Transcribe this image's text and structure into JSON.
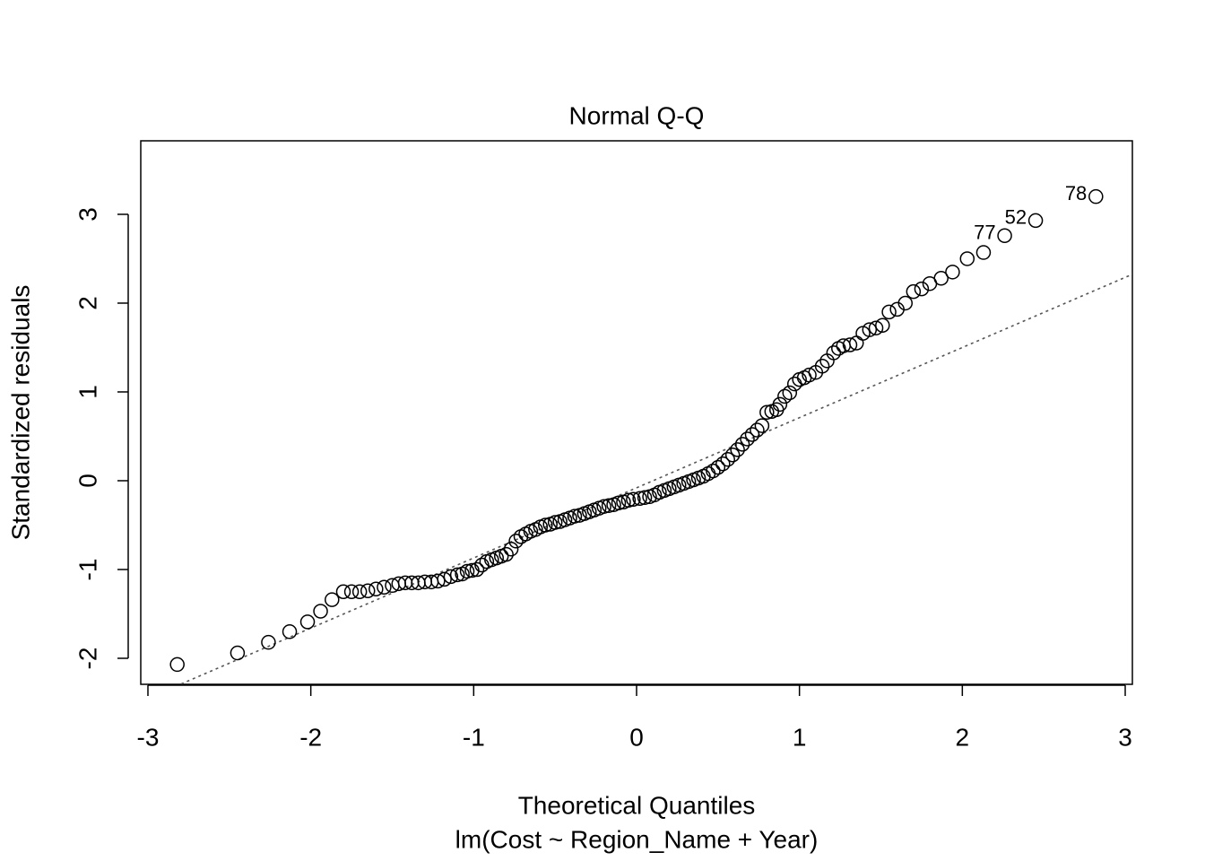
{
  "chart_data": {
    "type": "scatter",
    "title": "Normal Q-Q",
    "x_label": "Theoretical Quantiles",
    "subtitle": "lm(Cost ~ Region_Name + Year)",
    "y_label": "Standardized residuals",
    "x": [
      -2.82,
      -2.45,
      -2.26,
      -2.13,
      -2.02,
      -1.94,
      -1.87,
      -1.8,
      -1.75,
      -1.7,
      -1.65,
      -1.6,
      -1.55,
      -1.5,
      -1.46,
      -1.42,
      -1.38,
      -1.34,
      -1.3,
      -1.26,
      -1.22,
      -1.18,
      -1.14,
      -1.1,
      -1.07,
      -1.04,
      -1.01,
      -0.98,
      -0.95,
      -0.92,
      -0.89,
      -0.86,
      -0.83,
      -0.8,
      -0.77,
      -0.74,
      -0.71,
      -0.68,
      -0.65,
      -0.62,
      -0.59,
      -0.56,
      -0.53,
      -0.5,
      -0.47,
      -0.44,
      -0.41,
      -0.38,
      -0.35,
      -0.32,
      -0.29,
      -0.26,
      -0.23,
      -0.2,
      -0.17,
      -0.14,
      -0.11,
      -0.08,
      -0.05,
      -0.02,
      0.02,
      0.05,
      0.08,
      0.11,
      0.14,
      0.17,
      0.2,
      0.23,
      0.26,
      0.29,
      0.32,
      0.35,
      0.38,
      0.41,
      0.44,
      0.47,
      0.5,
      0.53,
      0.56,
      0.59,
      0.62,
      0.65,
      0.68,
      0.71,
      0.74,
      0.77,
      0.8,
      0.83,
      0.86,
      0.88,
      0.91,
      0.94,
      0.97,
      1.0,
      1.03,
      1.06,
      1.1,
      1.14,
      1.17,
      1.21,
      1.24,
      1.27,
      1.31,
      1.35,
      1.39,
      1.43,
      1.47,
      1.51,
      1.55,
      1.6,
      1.65,
      1.7,
      1.75,
      1.8,
      1.87,
      1.94,
      2.03,
      2.13,
      2.26,
      2.45,
      2.82
    ],
    "values": [
      -2.07,
      -1.94,
      -1.82,
      -1.7,
      -1.59,
      -1.47,
      -1.34,
      -1.25,
      -1.25,
      -1.25,
      -1.24,
      -1.22,
      -1.2,
      -1.18,
      -1.16,
      -1.15,
      -1.15,
      -1.15,
      -1.14,
      -1.14,
      -1.13,
      -1.11,
      -1.08,
      -1.06,
      -1.05,
      -1.02,
      -1.01,
      -1.0,
      -0.95,
      -0.91,
      -0.89,
      -0.87,
      -0.85,
      -0.83,
      -0.77,
      -0.68,
      -0.63,
      -0.6,
      -0.57,
      -0.55,
      -0.52,
      -0.5,
      -0.49,
      -0.47,
      -0.46,
      -0.44,
      -0.42,
      -0.4,
      -0.39,
      -0.37,
      -0.35,
      -0.33,
      -0.31,
      -0.29,
      -0.28,
      -0.27,
      -0.25,
      -0.24,
      -0.22,
      -0.21,
      -0.2,
      -0.19,
      -0.18,
      -0.16,
      -0.13,
      -0.11,
      -0.09,
      -0.07,
      -0.05,
      -0.03,
      -0.01,
      0.01,
      0.03,
      0.05,
      0.08,
      0.11,
      0.15,
      0.19,
      0.24,
      0.29,
      0.35,
      0.41,
      0.47,
      0.52,
      0.57,
      0.62,
      0.77,
      0.78,
      0.8,
      0.86,
      0.95,
      0.99,
      1.09,
      1.14,
      1.16,
      1.19,
      1.22,
      1.29,
      1.35,
      1.44,
      1.49,
      1.52,
      1.53,
      1.55,
      1.66,
      1.7,
      1.72,
      1.75,
      1.9,
      1.93,
      2.0,
      2.13,
      2.16,
      2.22,
      2.28,
      2.35,
      2.5,
      2.57,
      2.76,
      2.93,
      3.2
    ],
    "color": "#000000",
    "annotations": [
      {
        "text": "77",
        "x": 2.26,
        "y": 2.76
      },
      {
        "text": "52",
        "x": 2.45,
        "y": 2.93
      },
      {
        "text": "78",
        "x": 2.82,
        "y": 3.2
      }
    ],
    "reference_line": {
      "intercept": -0.08,
      "slope": 0.79,
      "color": "#555555"
    },
    "xlim": [
      -3.044,
      3.044
    ],
    "ylim": [
      -2.293,
      3.828
    ],
    "xticks": [
      -3,
      -2,
      -1,
      0,
      1,
      2,
      3
    ],
    "yticks": [
      -2,
      -1,
      0,
      1,
      2,
      3
    ]
  }
}
